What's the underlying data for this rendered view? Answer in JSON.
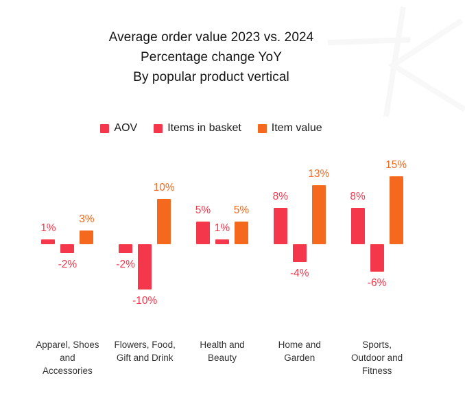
{
  "title": {
    "line1": "Average order value 2023 vs. 2024",
    "line2": "Percentage change YoY",
    "line3": "By popular product vertical"
  },
  "chart_data": {
    "type": "bar",
    "title": "Average order value 2023 vs. 2024",
    "subtitle": "Percentage change YoY — By popular product vertical",
    "categories": [
      "Apparel, Shoes and Accessories",
      "Flowers, Food, Gift and Drink",
      "Health and Beauty",
      "Home and Garden",
      "Sports, Outdoor and Fitness"
    ],
    "category_lines": [
      [
        "Apparel, Shoes",
        "and",
        "Accessories"
      ],
      [
        "Flowers, Food,",
        "Gift and Drink"
      ],
      [
        "Health and",
        "Beauty"
      ],
      [
        "Home and",
        "Garden"
      ],
      [
        "Sports,",
        "Outdoor and",
        "Fitness"
      ]
    ],
    "series": [
      {
        "name": "AOV",
        "color": "#F5374B",
        "values": [
          1,
          -2,
          5,
          8,
          8
        ]
      },
      {
        "name": "Items in basket",
        "color": "#F5374B",
        "values": [
          -2,
          -10,
          1,
          -4,
          -6
        ]
      },
      {
        "name": "Item value",
        "color": "#F4691D",
        "values": [
          3,
          10,
          5,
          13,
          15
        ]
      }
    ],
    "value_suffix": "%",
    "data_labels": true,
    "grid": false,
    "axes_visible": false,
    "legend_position": "top",
    "ylim": [
      -12,
      17
    ]
  }
}
